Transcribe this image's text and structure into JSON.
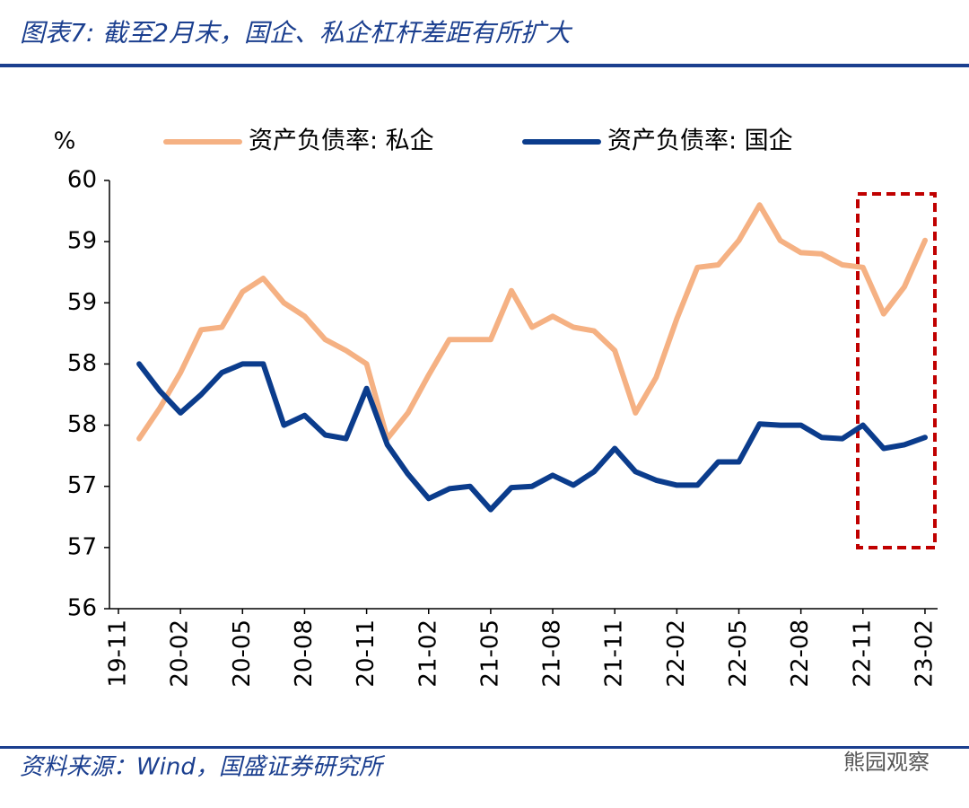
{
  "title": "图表7: 截至2月末，国企、私企杠杆差距有所扩大",
  "source": "资料来源：Wind，国盛证券研究所",
  "watermark": "熊园观察",
  "chart_data": {
    "type": "line",
    "y_unit": "%",
    "categories": [
      "19-11",
      null,
      null,
      "20-02",
      null,
      null,
      "20-05",
      null,
      null,
      "20-08",
      null,
      null,
      "20-11",
      null,
      null,
      "21-02",
      null,
      null,
      "21-05",
      null,
      null,
      "21-08",
      null,
      null,
      "21-11",
      null,
      null,
      "22-02",
      null,
      null,
      "22-05",
      null,
      null,
      "22-08",
      null,
      null,
      "22-11",
      null,
      null,
      "23-02"
    ],
    "series": [
      {
        "name": "资产负债率: 私企",
        "color": "#f5b183",
        "values": [
          null,
          57.39,
          57.64,
          57.93,
          58.28,
          58.3,
          58.59,
          58.7,
          58.5,
          58.39,
          58.2,
          58.11,
          58.0,
          57.39,
          57.6,
          57.91,
          58.2,
          58.2,
          58.2,
          58.6,
          58.3,
          58.39,
          58.3,
          58.27,
          58.11,
          57.6,
          57.89,
          58.37,
          58.79,
          58.81,
          59.01,
          59.3,
          59.01,
          58.91,
          58.9,
          58.81,
          58.79,
          58.41,
          58.63,
          59.01
        ]
      },
      {
        "name": "资产负债率: 国企",
        "color": "#0b3c8c",
        "values": [
          null,
          58.0,
          57.78,
          57.6,
          57.75,
          57.93,
          58.0,
          58.0,
          57.5,
          57.58,
          57.42,
          57.39,
          57.8,
          57.34,
          57.1,
          56.9,
          56.98,
          57.0,
          56.81,
          56.99,
          57.0,
          57.09,
          57.01,
          57.12,
          57.31,
          57.12,
          57.05,
          57.01,
          57.01,
          57.2,
          57.2,
          57.51,
          57.5,
          57.5,
          57.4,
          57.39,
          57.5,
          57.31,
          57.34,
          57.4
        ]
      }
    ],
    "ylim": [
      56,
      59.5
    ],
    "yticks": [
      56,
      {
        "value": 56.5,
        "label": "57"
      },
      57,
      {
        "value": 57.5,
        "label": "58"
      },
      58,
      {
        "value": 58.5,
        "label": "59"
      },
      59,
      {
        "value": 59.5,
        "label": "60"
      }
    ],
    "grid": false,
    "legend": "top"
  }
}
